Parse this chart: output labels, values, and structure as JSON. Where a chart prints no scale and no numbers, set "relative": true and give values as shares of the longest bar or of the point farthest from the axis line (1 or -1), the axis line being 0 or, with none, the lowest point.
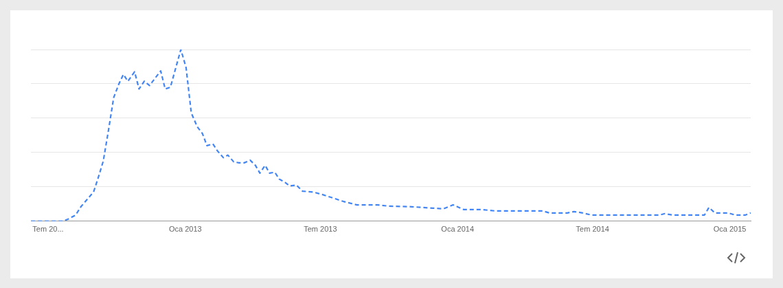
{
  "chart_data": {
    "type": "line",
    "relative": true,
    "grid": "y",
    "legend": false,
    "marker": "none",
    "line_style": "dashed",
    "xlim": [
      "2012-06-08",
      "2015-01-29"
    ],
    "xticks": [
      {
        "value": "2012-07-01",
        "label": "Tem 20..."
      },
      {
        "value": "2013-01-01",
        "label": "Oca 2013"
      },
      {
        "value": "2013-07-01",
        "label": "Tem 2013"
      },
      {
        "value": "2014-01-01",
        "label": "Oca 2014"
      },
      {
        "value": "2014-07-01",
        "label": "Tem 2014"
      },
      {
        "value": "2015-01-01",
        "label": "Oca 2015"
      }
    ],
    "series": [
      {
        "color": "#4285f4",
        "x": [
          "2012-06-08",
          "2012-07-21",
          "2012-07-28",
          "2012-08-07",
          "2012-08-14",
          "2012-08-23",
          "2012-08-31",
          "2012-09-06",
          "2012-09-13",
          "2012-09-20",
          "2012-09-27",
          "2012-10-04",
          "2012-10-10",
          "2012-10-16",
          "2012-10-25",
          "2012-10-31",
          "2012-11-07",
          "2012-11-14",
          "2012-11-21",
          "2012-11-29",
          "2012-12-05",
          "2012-12-12",
          "2012-12-19",
          "2012-12-26",
          "2013-01-02",
          "2013-01-09",
          "2013-01-17",
          "2013-01-24",
          "2013-01-30",
          "2013-02-07",
          "2013-02-13",
          "2013-02-21",
          "2013-02-27",
          "2013-03-07",
          "2013-03-14",
          "2013-03-21",
          "2013-03-29",
          "2013-04-05",
          "2013-04-11",
          "2013-04-18",
          "2013-04-24",
          "2013-05-01",
          "2013-05-07",
          "2013-05-15",
          "2013-05-21",
          "2013-05-30",
          "2013-06-07",
          "2013-06-21",
          "2013-07-04",
          "2013-07-18",
          "2013-08-01",
          "2013-08-19",
          "2013-09-16",
          "2013-09-30",
          "2013-11-01",
          "2013-11-29",
          "2013-12-13",
          "2013-12-26",
          "2014-01-09",
          "2014-02-01",
          "2014-02-20",
          "2014-04-25",
          "2014-05-04",
          "2014-05-28",
          "2014-06-06",
          "2014-06-18",
          "2014-06-29",
          "2014-09-29",
          "2014-10-06",
          "2014-10-16",
          "2014-11-28",
          "2014-12-04",
          "2014-12-12",
          "2014-12-30",
          "2015-01-08",
          "2015-01-22",
          "2015-01-29"
        ],
        "values": [
          0,
          0,
          0.012,
          0.036,
          0.084,
          0.13,
          0.17,
          0.25,
          0.35,
          0.53,
          0.72,
          0.8,
          0.855,
          0.815,
          0.87,
          0.77,
          0.815,
          0.79,
          0.83,
          0.875,
          0.77,
          0.78,
          0.89,
          1,
          0.895,
          0.63,
          0.55,
          0.51,
          0.44,
          0.45,
          0.41,
          0.37,
          0.385,
          0.345,
          0.34,
          0.34,
          0.355,
          0.325,
          0.28,
          0.325,
          0.28,
          0.285,
          0.245,
          0.225,
          0.205,
          0.21,
          0.175,
          0.17,
          0.155,
          0.135,
          0.115,
          0.095,
          0.095,
          0.088,
          0.084,
          0.076,
          0.072,
          0.095,
          0.068,
          0.068,
          0.06,
          0.06,
          0.048,
          0.048,
          0.056,
          0.048,
          0.036,
          0.036,
          0.044,
          0.036,
          0.036,
          0.08,
          0.048,
          0.048,
          0.036,
          0.036,
          0.048
        ]
      }
    ]
  }
}
